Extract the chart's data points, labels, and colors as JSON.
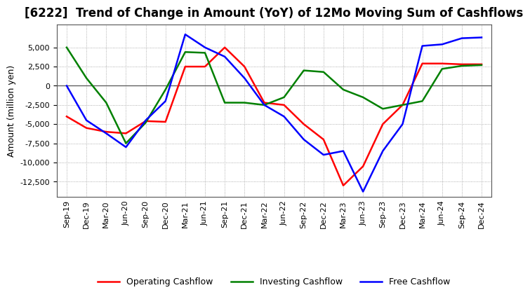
{
  "title": "[6222]  Trend of Change in Amount (YoY) of 12Mo Moving Sum of Cashflows",
  "ylabel": "Amount (million yen)",
  "background_color": "#ffffff",
  "plot_bg_color": "#ffffff",
  "grid_color": "#999999",
  "x_labels": [
    "Sep-19",
    "Dec-19",
    "Mar-20",
    "Jun-20",
    "Sep-20",
    "Dec-20",
    "Mar-21",
    "Jun-21",
    "Sep-21",
    "Dec-21",
    "Mar-22",
    "Jun-22",
    "Sep-22",
    "Dec-22",
    "Mar-23",
    "Jun-23",
    "Sep-23",
    "Dec-23",
    "Mar-24",
    "Jun-24",
    "Sep-24",
    "Dec-24"
  ],
  "operating_cashflow": [
    -4000,
    -5500,
    -6000,
    -6200,
    -4600,
    -4700,
    2500,
    2500,
    5000,
    2500,
    -2200,
    -2500,
    -5000,
    -7000,
    -13000,
    -10500,
    -5000,
    -2500,
    2900,
    2900,
    2800,
    2800
  ],
  "investing_cashflow": [
    5000,
    1000,
    -2200,
    -7500,
    -4800,
    -500,
    4400,
    4300,
    -2200,
    -2200,
    -2500,
    -1500,
    2000,
    1800,
    -500,
    -1500,
    -3000,
    -2500,
    -2000,
    2200,
    2600,
    2700
  ],
  "free_cashflow": [
    0,
    -4500,
    -6200,
    -8000,
    -4500,
    -2000,
    6700,
    5000,
    3800,
    1000,
    -2500,
    -4000,
    -7000,
    -9000,
    -8500,
    -13800,
    -8500,
    -5000,
    5200,
    5400,
    6200,
    6300
  ],
  "ylim": [
    -14500,
    8000
  ],
  "yticks": [
    -12500,
    -10000,
    -7500,
    -5000,
    -2500,
    0,
    2500,
    5000
  ],
  "line_colors": {
    "operating": "#ff0000",
    "investing": "#008000",
    "free": "#0000ff"
  },
  "legend_labels": [
    "Operating Cashflow",
    "Investing Cashflow",
    "Free Cashflow"
  ],
  "title_fontsize": 12,
  "axis_label_fontsize": 9,
  "tick_fontsize": 8,
  "legend_fontsize": 9
}
